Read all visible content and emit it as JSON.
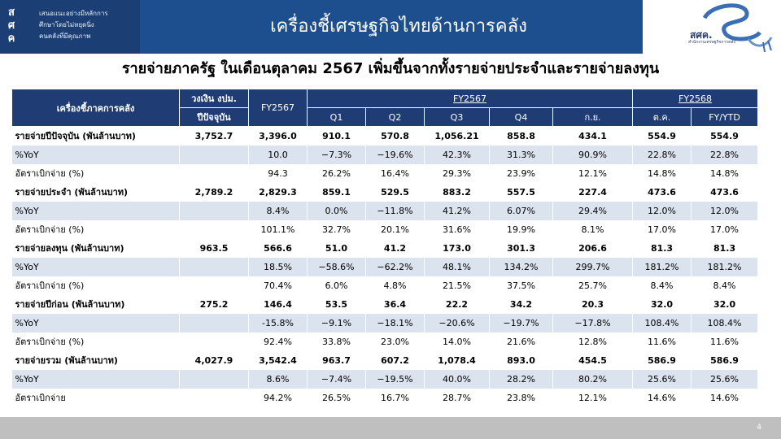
{
  "header": {
    "logo_letters": [
      "ส",
      "ศ",
      "ค"
    ],
    "logo_lines": [
      "เสนอแนะอย่างมีหลักการ",
      "ศึกษาโดยไม่หยุดนิ่ง",
      "คนคลังที่มีคุณภาพ"
    ],
    "title": "เครื่องชี้เศรษฐกิจไทยด้านการคลัง",
    "emblem_text": "สศค.",
    "emblem_sub": "สำนักงานเศรษฐกิจการคลัง"
  },
  "subtitle": "รายจ่ายภาครัฐ ในเดือนตุลาคม 2567 เพิ่มขึ้นจากทั้งรายจ่ายประจำและรายจ่ายลงทุน",
  "table": {
    "col_indicator": "เครื่องชี้ภาคการคลัง",
    "col_budget_top": "วงเงิน งปม.",
    "col_budget_bottom": "ปีปัจจุบัน",
    "col_fy2567_total": "FY2567",
    "group_fy2567": "FY2567",
    "group_fy2568": "FY2568",
    "sub_headers": [
      "Q1",
      "Q2",
      "Q3",
      "Q4",
      "ก.ย.",
      "ต.ค.",
      "FY/YTD"
    ],
    "rows": [
      {
        "type": "main",
        "label": "รายจ่ายปีปัจจุบัน (พันล้านบาท)",
        "values": [
          "3,752.7",
          "3,396.0",
          "910.1",
          "570.8",
          "1,056.21",
          "858.8",
          "434.1",
          "554.9",
          "554.9"
        ]
      },
      {
        "type": "yoy",
        "label": "%YoY",
        "values": [
          "",
          "10.0",
          "−7.3%",
          "−19.6%",
          "42.3%",
          "31.3%",
          "90.9%",
          "22.8%",
          "22.8%"
        ]
      },
      {
        "type": "rate",
        "label": "อัตราเบิกจ่าย (%)",
        "values": [
          "",
          "94.3",
          "26.2%",
          "16.4%",
          "29.3%",
          "23.9%",
          "12.1%",
          "14.8%",
          "14.8%"
        ]
      },
      {
        "type": "main",
        "label": "รายจ่ายประจำ (พันล้านบาท)",
        "values": [
          "2,789.2",
          "2,829.3",
          "859.1",
          "529.5",
          "883.2",
          "557.5",
          "227.4",
          "473.6",
          "473.6"
        ]
      },
      {
        "type": "yoy",
        "label": " %YoY",
        "values": [
          "",
          "8.4%",
          "0.0%",
          "−11.8%",
          "41.2%",
          "6.07%",
          "29.4%",
          "12.0%",
          "12.0%"
        ]
      },
      {
        "type": "rate",
        "label": " อัตราเบิกจ่าย (%)",
        "values": [
          "",
          "101.1%",
          "32.7%",
          "20.1%",
          "31.6%",
          "19.9%",
          "8.1%",
          "17.0%",
          "17.0%"
        ]
      },
      {
        "type": "main",
        "label": "รายจ่ายลงทุน (พันล้านบาท)",
        "values": [
          "963.5",
          "566.6",
          "51.0",
          "41.2",
          "173.0",
          "301.3",
          "206.6",
          "81.3",
          "81.3"
        ]
      },
      {
        "type": "yoy",
        "label": " %YoY",
        "values": [
          "",
          "18.5%",
          "−58.6%",
          "−62.2%",
          "48.1%",
          "134.2%",
          "299.7%",
          "181.2%",
          "181.2%"
        ]
      },
      {
        "type": "rate",
        "label": " อัตราเบิกจ่าย (%)",
        "values": [
          "",
          "70.4%",
          "6.0%",
          "4.8%",
          "21.5%",
          "37.5%",
          "25.7%",
          "8.4%",
          "8.4%"
        ]
      },
      {
        "type": "main",
        "label": "รายจ่ายปีก่อน (พันล้านบาท)",
        "values": [
          "275.2",
          "146.4",
          "53.5",
          "36.4",
          "22.2",
          "34.2",
          "20.3",
          "32.0",
          "32.0"
        ]
      },
      {
        "type": "yoy",
        "label": "%YoY",
        "values": [
          "",
          "-15.8%",
          "−9.1%",
          "−18.1%",
          "−20.6%",
          "−19.7%",
          "−17.8%",
          "108.4%",
          "108.4%"
        ]
      },
      {
        "type": "rate",
        "label": "อัตราเบิกจ่าย (%)",
        "values": [
          "",
          "92.4%",
          "33.8%",
          "23.0%",
          "14.0%",
          "21.6%",
          "12.8%",
          "11.6%",
          "11.6%"
        ]
      },
      {
        "type": "main",
        "label": "รายจ่ายรวม (พันล้านบาท)",
        "values": [
          "4,027.9",
          "3,542.4",
          "963.7",
          "607.2",
          "1,078.4",
          "893.0",
          "454.5",
          "586.9",
          "586.9"
        ]
      },
      {
        "type": "yoy",
        "label": "%YoY",
        "values": [
          "",
          "8.6%",
          "−7.4%",
          "−19.5%",
          "40.0%",
          "28.2%",
          "80.2%",
          "25.6%",
          "25.6%"
        ]
      },
      {
        "type": "rate",
        "label": "อัตราเบิกจ่าย",
        "values": [
          "",
          "94.2%",
          "26.5%",
          "16.7%",
          "28.7%",
          "23.8%",
          "12.1%",
          "14.6%",
          "14.6%"
        ]
      }
    ]
  },
  "footer": {
    "page_number": "4"
  },
  "colors": {
    "header_blue": "#1d4f8e",
    "table_header": "#1f3d74",
    "stripe": "#dbe3ef",
    "footer_gray": "#bfbfbf"
  }
}
